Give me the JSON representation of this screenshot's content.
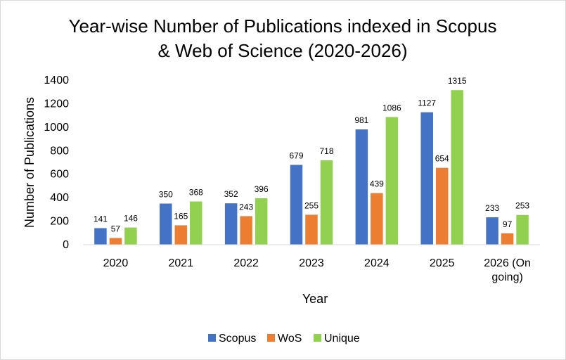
{
  "chart_data": {
    "type": "bar",
    "title": "Year-wise Number of Publications indexed in Scopus & Web of Science (2020-2026)",
    "title_lines": [
      "Year-wise Number of Publications indexed in Scopus",
      "& Web of Science (2020-2026)"
    ],
    "xlabel": "Year",
    "ylabel": "Number of Publications",
    "ylim": [
      0,
      1400
    ],
    "yticks": [
      0,
      200,
      400,
      600,
      800,
      1000,
      1200,
      1400
    ],
    "categories": [
      "2020",
      "2021",
      "2022",
      "2023",
      "2024",
      "2025",
      "2026 (On going)"
    ],
    "category_lines": [
      [
        "2020"
      ],
      [
        "2021"
      ],
      [
        "2022"
      ],
      [
        "2023"
      ],
      [
        "2024"
      ],
      [
        "2025"
      ],
      [
        "2026 (On",
        "going)"
      ]
    ],
    "series": [
      {
        "name": "Scopus",
        "color": "#4472c4",
        "values": [
          141,
          350,
          352,
          679,
          981,
          1127,
          233
        ]
      },
      {
        "name": "WoS",
        "color": "#ed7d31",
        "values": [
          57,
          165,
          243,
          255,
          439,
          654,
          97
        ]
      },
      {
        "name": "Unique",
        "color": "#92d050",
        "values": [
          146,
          368,
          396,
          718,
          1086,
          1315,
          253
        ]
      }
    ],
    "grid": false,
    "legend_position": "bottom"
  }
}
